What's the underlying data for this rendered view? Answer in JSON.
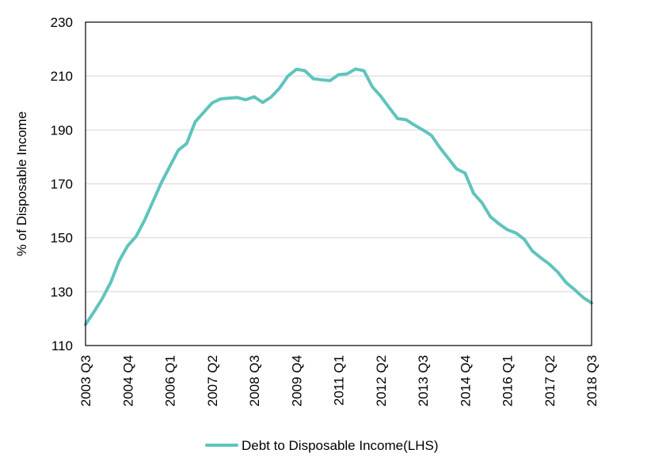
{
  "chart_data": {
    "type": "line",
    "title": "",
    "xlabel": "",
    "ylabel": "% of Disposable Income",
    "ylim": [
      110,
      230
    ],
    "yticks": [
      110,
      130,
      150,
      170,
      190,
      210,
      230
    ],
    "grid": true,
    "legend_position": "bottom",
    "x": [
      "2003 Q3",
      "2003 Q4",
      "2004 Q1",
      "2004 Q2",
      "2004 Q3",
      "2004 Q4",
      "2005 Q1",
      "2005 Q2",
      "2005 Q3",
      "2005 Q4",
      "2006 Q1",
      "2006 Q2",
      "2006 Q3",
      "2006 Q4",
      "2007 Q1",
      "2007 Q2",
      "2007 Q3",
      "2007 Q4",
      "2008 Q1",
      "2008 Q2",
      "2008 Q3",
      "2008 Q4",
      "2009 Q1",
      "2009 Q2",
      "2009 Q3",
      "2009 Q4",
      "2010 Q1",
      "2010 Q2",
      "2010 Q3",
      "2010 Q4",
      "2011 Q1",
      "2011 Q2",
      "2011 Q3",
      "2011 Q4",
      "2012 Q1",
      "2012 Q2",
      "2012 Q3",
      "2012 Q4",
      "2013 Q1",
      "2013 Q2",
      "2013 Q3",
      "2013 Q4",
      "2014 Q1",
      "2014 Q2",
      "2014 Q3",
      "2014 Q4",
      "2015 Q1",
      "2015 Q2",
      "2015 Q3",
      "2015 Q4",
      "2016 Q1",
      "2016 Q2",
      "2016 Q3",
      "2016 Q4",
      "2017 Q1",
      "2017 Q2",
      "2017 Q3",
      "2017 Q4",
      "2018 Q1",
      "2018 Q2",
      "2018 Q3"
    ],
    "x_tick_labels": [
      "2003 Q3",
      "2004 Q4",
      "2006 Q1",
      "2007 Q2",
      "2008 Q3",
      "2009 Q4",
      "2011 Q1",
      "2012 Q2",
      "2013 Q3",
      "2014 Q4",
      "2016 Q1",
      "2017 Q2",
      "2018 Q3"
    ],
    "series": [
      {
        "name": "Debt to Disposable Income(LHS)",
        "color": "#5fc4bd",
        "values": [
          117.8,
          122.5,
          127.5,
          133.5,
          141.5,
          147.0,
          150.5,
          156.5,
          163.5,
          170.5,
          176.5,
          182.5,
          185.0,
          193.0,
          196.5,
          200.0,
          201.5,
          201.8,
          202.0,
          201.2,
          202.3,
          200.2,
          202.2,
          205.5,
          210.0,
          212.5,
          212.0,
          209.0,
          208.6,
          208.3,
          210.5,
          210.8,
          212.6,
          212.0,
          206.0,
          202.5,
          198.3,
          194.2,
          193.8,
          191.8,
          190.0,
          188.0,
          183.5,
          179.5,
          175.5,
          174.0,
          166.5,
          163.0,
          157.8,
          155.2,
          153.0,
          151.8,
          149.5,
          145.0,
          142.5,
          140.2,
          137.2,
          133.3,
          130.7,
          127.8,
          125.8
        ]
      }
    ]
  }
}
